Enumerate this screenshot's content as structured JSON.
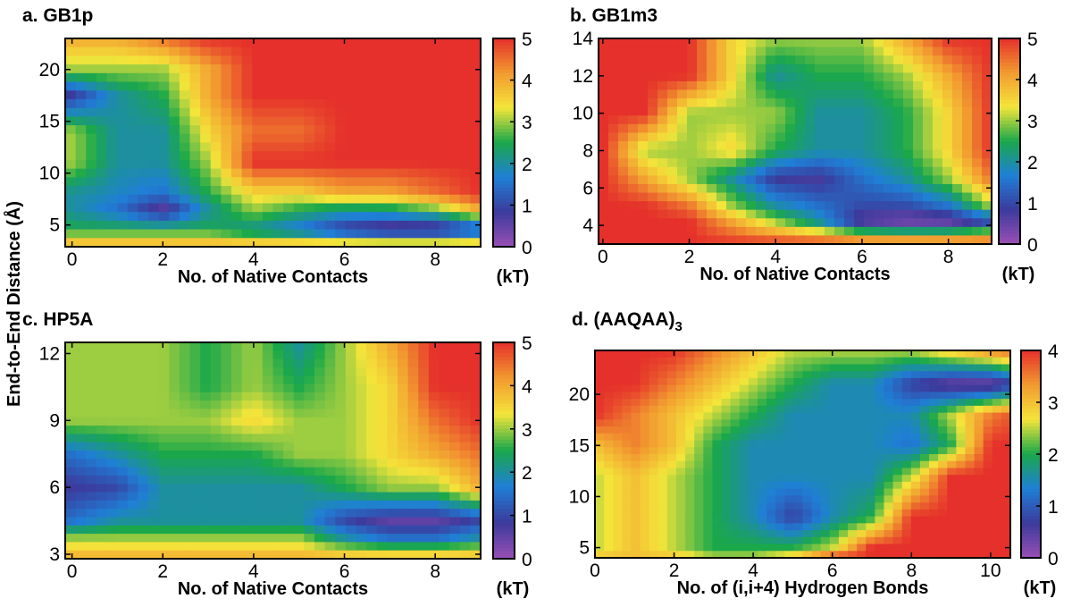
{
  "shared_ylabel": "End-to-End Distance (Å)",
  "colormap": [
    "#9a4fb4",
    "#3b3b9c",
    "#1f7fd6",
    "#1aa84a",
    "#f4e53a",
    "#f29a30",
    "#e5302b"
  ],
  "chart_data": [
    {
      "type": "heatmap",
      "title": "a. GB1p",
      "xlabel": "No. of Native Contacts",
      "ylabel": "End-to-End Distance (Å)",
      "xlim": [
        -0.15,
        9
      ],
      "ylim": [
        2.9,
        23
      ],
      "xticks": [
        "0",
        "2",
        "4",
        "6",
        "8"
      ],
      "yticks": [
        "5",
        "10",
        "15",
        "20"
      ],
      "colorbar": {
        "range": [
          0,
          5
        ],
        "ticks": [
          "0",
          "1",
          "2",
          "3",
          "4",
          "5"
        ],
        "unit": "(kT)"
      },
      "x": [
        0,
        1,
        2,
        3,
        4,
        5,
        6,
        7,
        8,
        9
      ],
      "y": [
        23,
        20,
        17.5,
        14,
        11,
        8,
        6.5,
        4.5,
        3
      ],
      "z": [
        [
          4,
          4,
          4.5,
          5,
          5,
          5,
          5,
          5,
          5,
          5
        ],
        [
          3,
          3,
          3,
          4,
          5,
          5,
          5,
          5,
          5,
          5
        ],
        [
          0.8,
          2,
          2.5,
          4,
          5,
          5,
          5,
          5,
          5,
          5
        ],
        [
          3,
          2,
          2,
          3.5,
          4.5,
          4.5,
          5,
          5,
          5,
          5
        ],
        [
          3,
          2,
          2,
          3,
          5,
          5,
          5,
          5,
          5,
          5
        ],
        [
          2,
          1.8,
          1.5,
          2.5,
          3.5,
          3.5,
          4,
          4,
          4.5,
          5
        ],
        [
          2,
          1.5,
          0.5,
          2,
          3,
          2.5,
          2.2,
          2.3,
          2.8,
          4
        ],
        [
          2.5,
          2.5,
          2.5,
          2.5,
          2,
          1.5,
          0.7,
          0.3,
          0.3,
          1
        ],
        [
          4,
          4,
          4,
          4,
          4,
          4,
          4,
          4,
          4,
          4
        ]
      ]
    },
    {
      "type": "heatmap",
      "title": "b. GB1m3",
      "xlabel": "No. of Native Contacts",
      "ylabel": "End-to-End Distance (Å)",
      "xlim": [
        -0.1,
        9
      ],
      "ylim": [
        3,
        14
      ],
      "xticks": [
        "0",
        "2",
        "4",
        "6",
        "8"
      ],
      "yticks": [
        "4",
        "6",
        "8",
        "10",
        "12",
        "14"
      ],
      "colorbar": {
        "range": [
          0,
          5
        ],
        "ticks": [
          "0",
          "1",
          "2",
          "3",
          "4",
          "5"
        ],
        "unit": "(kT)"
      },
      "x": [
        0,
        1,
        2,
        3,
        4,
        5,
        6,
        7,
        8,
        9
      ],
      "y": [
        14,
        12,
        10,
        8,
        6.5,
        5,
        4.2,
        3
      ],
      "z": [
        [
          5,
          5,
          5,
          3.5,
          3,
          3,
          3,
          4,
          5,
          5
        ],
        [
          5,
          5,
          5,
          3.5,
          2,
          2.5,
          2.5,
          3,
          4,
          5
        ],
        [
          5,
          5,
          3,
          3,
          3,
          2,
          2,
          2.5,
          3.5,
          5
        ],
        [
          5,
          3,
          3,
          3.5,
          2.5,
          2,
          2,
          2.5,
          3.5,
          5
        ],
        [
          5,
          4,
          3,
          2,
          0.8,
          0.7,
          1.5,
          2,
          3,
          4.5
        ],
        [
          5,
          5,
          4.5,
          3,
          2,
          1.5,
          1,
          1,
          1.5,
          3
        ],
        [
          5,
          5,
          5,
          4,
          3,
          2,
          0.5,
          0.2,
          0.3,
          1
        ],
        [
          5,
          5,
          5,
          5,
          5,
          5,
          5,
          5,
          5,
          5
        ]
      ]
    },
    {
      "type": "heatmap",
      "title": "c. HP5A",
      "xlabel": "No. of Native Contacts",
      "ylabel": "End-to-End Distance (Å)",
      "xlim": [
        -0.15,
        9
      ],
      "ylim": [
        2.8,
        12.5
      ],
      "xticks": [
        "0",
        "2",
        "4",
        "6",
        "8"
      ],
      "yticks": [
        "3",
        "6",
        "9",
        "12"
      ],
      "colorbar": {
        "range": [
          0,
          5
        ],
        "ticks": [
          "0",
          "1",
          "2",
          "3",
          "4",
          "5"
        ],
        "unit": "(kT)"
      },
      "x": [
        0,
        1,
        2,
        3,
        4,
        5,
        6,
        7,
        8,
        9
      ],
      "y": [
        12.5,
        10.5,
        9,
        7.5,
        6,
        4.5,
        3.7,
        2.8
      ],
      "z": [
        [
          3,
          3,
          3,
          2.5,
          3,
          2,
          3,
          4,
          5,
          5
        ],
        [
          3,
          3,
          3,
          2.5,
          3,
          2.5,
          3,
          3.5,
          5,
          5
        ],
        [
          3,
          3,
          3,
          3,
          3.5,
          3,
          3,
          3.5,
          4.5,
          5
        ],
        [
          1.5,
          2,
          2.5,
          2.5,
          2.5,
          3,
          3,
          3.5,
          4,
          4.5
        ],
        [
          0.8,
          1,
          2,
          2,
          2,
          2,
          2.5,
          3,
          3,
          4
        ],
        [
          1.5,
          2,
          2,
          2,
          2,
          2,
          1,
          0.5,
          0.5,
          1
        ],
        [
          3,
          3,
          3,
          3,
          3,
          3,
          2,
          1.5,
          1.5,
          2
        ],
        [
          4,
          4,
          4,
          4,
          4,
          4,
          4,
          4,
          4,
          4
        ]
      ]
    },
    {
      "type": "heatmap",
      "title": "d. (AAQAA)",
      "title_subscript": "3",
      "xlabel": "No. of (i,i+4) Hydrogen Bonds",
      "ylabel": "End-to-End Distance (Å)",
      "xlim": [
        0,
        10.5
      ],
      "ylim": [
        4,
        24.3
      ],
      "xticks": [
        "0",
        "2",
        "4",
        "6",
        "8",
        "10"
      ],
      "yticks": [
        "5",
        "10",
        "15",
        "20"
      ],
      "colorbar": {
        "range": [
          0,
          4
        ],
        "ticks": [
          "0",
          "1",
          "2",
          "3",
          "4"
        ],
        "unit": "(kT)"
      },
      "x": [
        0,
        1,
        2,
        3,
        4,
        5,
        6,
        7,
        8,
        9,
        10,
        11
      ],
      "y": [
        24.3,
        21,
        18,
        15,
        12,
        8,
        5,
        4
      ],
      "z": [
        [
          4,
          4,
          4,
          3.5,
          3,
          2.5,
          2.5,
          2.5,
          2.5,
          3,
          3.5,
          4
        ],
        [
          4,
          4,
          3.5,
          3,
          2.5,
          2,
          1.5,
          1.5,
          0.7,
          0.3,
          0.2,
          1
        ],
        [
          4,
          3.5,
          3,
          2.5,
          2,
          1.5,
          1.5,
          1.5,
          1.5,
          2.5,
          3.5,
          4
        ],
        [
          3,
          3.5,
          3,
          2,
          1.5,
          1.5,
          1.5,
          1.5,
          1.2,
          2,
          4,
          4
        ],
        [
          2.5,
          3,
          2.5,
          2,
          1.5,
          1.5,
          1.5,
          1.5,
          2.5,
          4,
          4,
          4
        ],
        [
          2.5,
          3,
          2.5,
          2,
          1.5,
          0.7,
          1.5,
          2,
          4,
          4,
          4,
          4
        ],
        [
          2.5,
          3,
          2.5,
          2,
          2,
          2,
          2.5,
          4,
          4,
          4,
          4,
          4
        ],
        [
          3,
          3,
          3,
          2.5,
          2.5,
          3,
          4,
          4,
          4,
          4,
          4,
          4
        ]
      ]
    }
  ]
}
